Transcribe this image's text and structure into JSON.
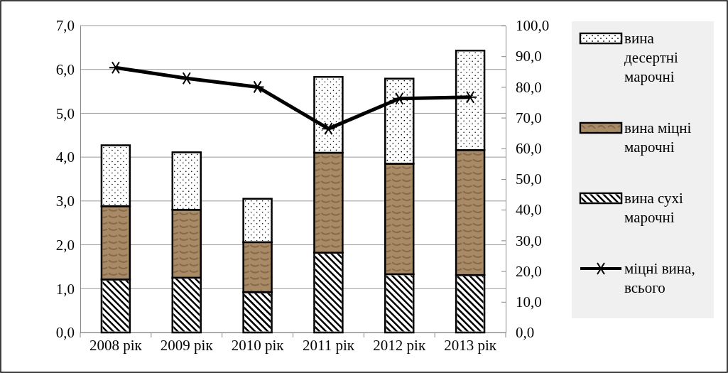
{
  "chart_data": {
    "type": "bar",
    "stacked": true,
    "categories": [
      "2008 рік",
      "2009 рік",
      "2010 рік",
      "2011 рік",
      "2012 рік",
      "2013 рік"
    ],
    "series": [
      {
        "name": "вина сухі марочні",
        "color": "#ffffff",
        "values": [
          1.21,
          1.25,
          0.92,
          1.82,
          1.33,
          1.31
        ]
      },
      {
        "name": "вина міцні марочні",
        "color": "#a88a66",
        "values": [
          1.67,
          1.55,
          1.14,
          2.28,
          2.52,
          2.85
        ]
      },
      {
        "name": "вина десертні марочні",
        "color": "#ffffff",
        "values": [
          1.39,
          1.31,
          0.99,
          1.73,
          1.94,
          2.27
        ]
      },
      {
        "name": "міцні вина, всього",
        "type": "line",
        "axis": "y2",
        "color": "#000000",
        "marker": "cross",
        "values": [
          86.3,
          82.8,
          80.0,
          66.4,
          76.2,
          76.7
        ]
      }
    ],
    "ylim": [
      0,
      7
    ],
    "yticks": [
      {
        "value": 0,
        "label": "0,0"
      },
      {
        "value": 1,
        "label": "1,0"
      },
      {
        "value": 2,
        "label": "2,0"
      },
      {
        "value": 3,
        "label": "3,0"
      },
      {
        "value": 4,
        "label": "4,0"
      },
      {
        "value": 5,
        "label": "5,0"
      },
      {
        "value": 6,
        "label": "6,0"
      },
      {
        "value": 7,
        "label": "7,0"
      }
    ],
    "y2lim": [
      0,
      100
    ],
    "y2ticks": [
      {
        "value": 0,
        "label": "0,0"
      },
      {
        "value": 10,
        "label": "10,0"
      },
      {
        "value": 20,
        "label": "20,0"
      },
      {
        "value": 30,
        "label": "30,0"
      },
      {
        "value": 40,
        "label": "40,0"
      },
      {
        "value": 50,
        "label": "50,0"
      },
      {
        "value": 60,
        "label": "60,0"
      },
      {
        "value": 70,
        "label": "70,0"
      },
      {
        "value": 80,
        "label": "80,0"
      },
      {
        "value": 90,
        "label": "90,0"
      },
      {
        "value": 100,
        "label": "100,0"
      }
    ],
    "grid": "y",
    "legend": "right"
  }
}
